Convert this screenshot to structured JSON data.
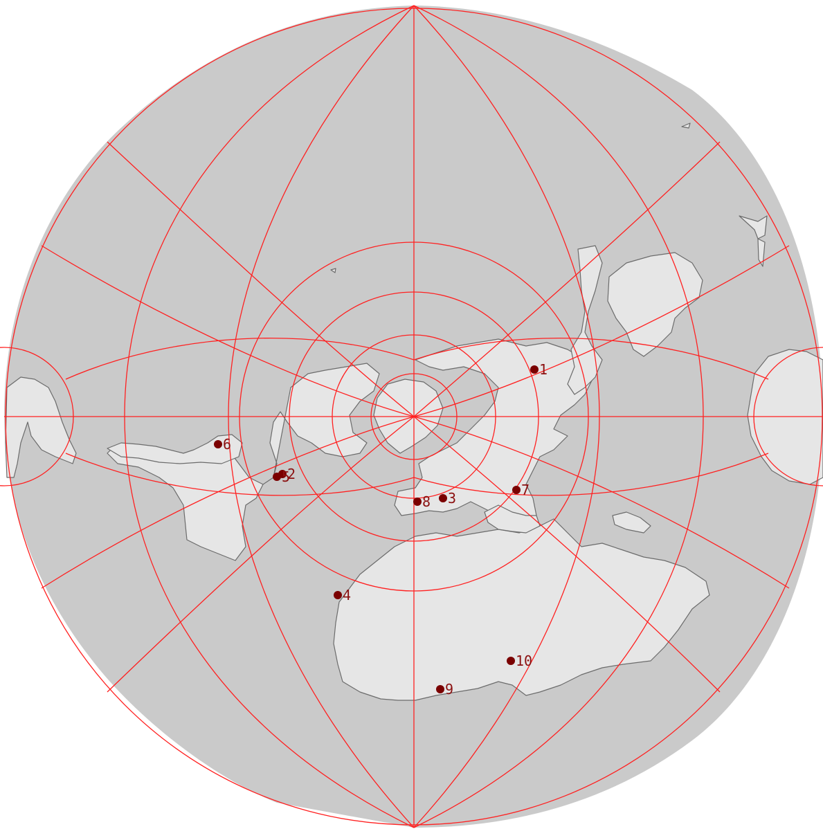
{
  "map": {
    "projection": "polar (north pole at center)",
    "colors": {
      "ocean": "#cacaca",
      "land": "#e6e6e6",
      "border": "#6b6b6b",
      "graticule": "#ff2020",
      "marker": "#7a0000",
      "label": "#8b1010"
    }
  },
  "markers": [
    {
      "label": "1"
    },
    {
      "label": "2"
    },
    {
      "label": "3"
    },
    {
      "label": "4"
    },
    {
      "label": "5"
    },
    {
      "label": "6"
    },
    {
      "label": "7"
    },
    {
      "label": "8"
    },
    {
      "label": "9"
    },
    {
      "label": "10"
    }
  ]
}
